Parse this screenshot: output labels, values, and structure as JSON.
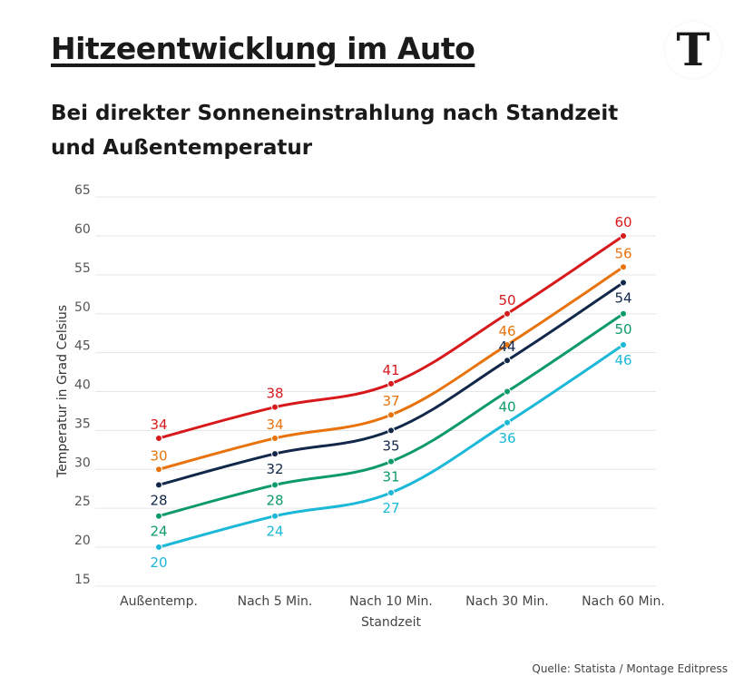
{
  "header": {
    "title": "Hitzeentwicklung im Auto",
    "subtitle": "Bei direkter Sonneneinstrahlung nach Standzeit und Außentemperatur",
    "logo": "T"
  },
  "source": "Quelle: Statista / Montage Editpress",
  "chart_data": {
    "type": "line",
    "title": "Hitzeentwicklung im Auto",
    "xlabel": "Standzeit",
    "ylabel": "Temperatur in Grad Celsius",
    "categories": [
      "Außentemp.",
      "Nach 5 Min.",
      "Nach 10 Min.",
      "Nach 30 Min.",
      "Nach 60 Min."
    ],
    "ylim": [
      15,
      65
    ],
    "yticks": [
      15,
      20,
      25,
      30,
      35,
      40,
      45,
      50,
      55,
      60,
      65
    ],
    "grid": true,
    "series": [
      {
        "color": "#d7191c",
        "values": [
          34,
          38,
          41,
          50,
          60
        ],
        "label_pos": [
          "above",
          "above",
          "above",
          "above",
          "above"
        ]
      },
      {
        "color": "#e8730c",
        "values": [
          30,
          34,
          37,
          46,
          56
        ],
        "label_pos": [
          "above",
          "above",
          "above",
          "above",
          "above"
        ]
      },
      {
        "color": "#12284a",
        "values": [
          28,
          32,
          35,
          44,
          54
        ],
        "label_pos": [
          "below",
          "below",
          "below",
          "above",
          "below"
        ]
      },
      {
        "color": "#0d9a6a",
        "values": [
          24,
          28,
          31,
          40,
          50
        ],
        "label_pos": [
          "below",
          "below",
          "below",
          "below",
          "below"
        ]
      },
      {
        "color": "#1bb8d8",
        "values": [
          20,
          24,
          27,
          36,
          46
        ],
        "label_pos": [
          "below",
          "below",
          "below",
          "below",
          "below"
        ]
      }
    ]
  }
}
